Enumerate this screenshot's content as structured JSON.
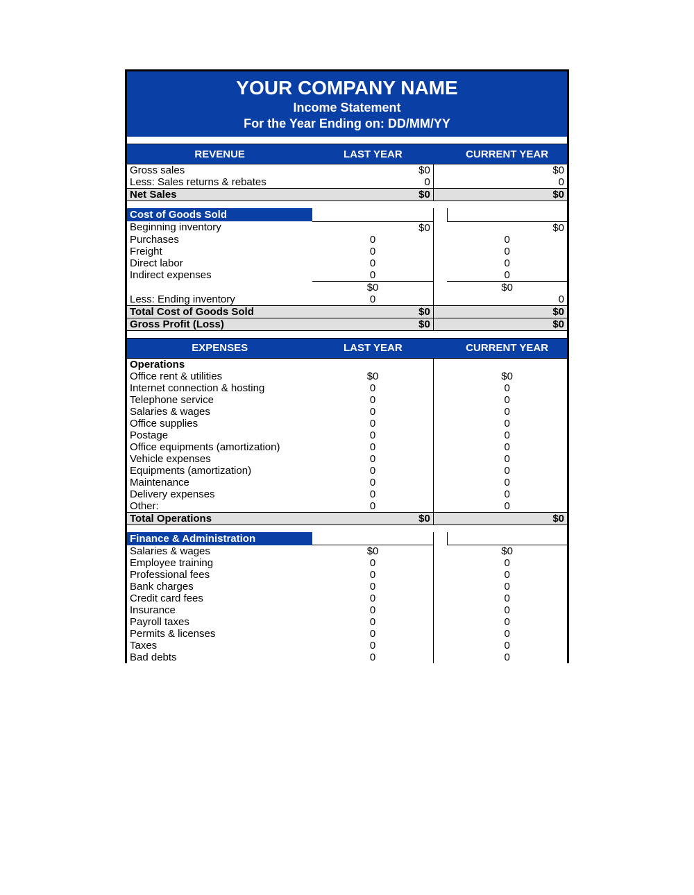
{
  "header": {
    "company": "YOUR COMPANY NAME",
    "subtitle": "Income Statement",
    "period": "For the Year Ending on: DD/MM/YY"
  },
  "colors": {
    "primary": "#0a3fa6",
    "shade": "#e0e0e0",
    "border": "#000000",
    "text_light": "#ffffff"
  },
  "revenue": {
    "heading": "REVENUE",
    "col_last": "LAST YEAR",
    "col_current": "CURRENT YEAR",
    "gross_sales": {
      "label": "Gross sales",
      "last": "$0",
      "current": "$0"
    },
    "returns": {
      "label": "Less: Sales returns & rebates",
      "last": "0",
      "current": "0"
    },
    "net_sales": {
      "label": "Net Sales",
      "last": "$0",
      "current": "$0"
    }
  },
  "cogs": {
    "heading": "Cost of Goods Sold",
    "rows": [
      {
        "label": "Beginning inventory",
        "last": "$0",
        "current": "$0",
        "align": "right"
      },
      {
        "label": "Purchases",
        "last": "0",
        "current": "0",
        "align": "center"
      },
      {
        "label": "Freight",
        "last": "0",
        "current": "0",
        "align": "center"
      },
      {
        "label": "Direct labor",
        "last": "0",
        "current": "0",
        "align": "center"
      },
      {
        "label": "Indirect expenses",
        "last": "0",
        "current": "0",
        "align": "center"
      }
    ],
    "subtotal": {
      "label": "",
      "last": "$0",
      "current": "$0"
    },
    "ending_inv": {
      "label": "Less: Ending inventory",
      "last": "0",
      "current": "0"
    },
    "total": {
      "label": "Total Cost of Goods Sold",
      "last": "$0",
      "current": "$0"
    },
    "gross_profit": {
      "label": "Gross Profit (Loss)",
      "last": "$0",
      "current": "$0"
    }
  },
  "expenses": {
    "heading": "EXPENSES",
    "col_last": "LAST YEAR",
    "col_current": "CURRENT YEAR",
    "operations": {
      "heading": "Operations",
      "rows": [
        {
          "label": "Office rent & utilities",
          "last": "$0",
          "current": "$0"
        },
        {
          "label": "Internet connection & hosting",
          "last": "0",
          "current": "0"
        },
        {
          "label": "Telephone service",
          "last": "0",
          "current": "0"
        },
        {
          "label": "Salaries & wages",
          "last": "0",
          "current": "0"
        },
        {
          "label": "Office supplies",
          "last": "0",
          "current": "0"
        },
        {
          "label": "Postage",
          "last": "0",
          "current": "0"
        },
        {
          "label": "Office equipments (amortization)",
          "last": "0",
          "current": "0"
        },
        {
          "label": "Vehicle expenses",
          "last": "0",
          "current": "0"
        },
        {
          "label": "Equipments (amortization)",
          "last": "0",
          "current": "0"
        },
        {
          "label": "Maintenance",
          "last": "0",
          "current": "0"
        },
        {
          "label": "Delivery expenses",
          "last": "0",
          "current": "0"
        },
        {
          "label": "Other:",
          "last": "0",
          "current": "0"
        }
      ],
      "total": {
        "label": "Total Operations",
        "last": "$0",
        "current": "$0"
      }
    },
    "finance": {
      "heading": "Finance & Administration",
      "rows": [
        {
          "label": "Salaries & wages",
          "last": "$0",
          "current": "$0"
        },
        {
          "label": "Employee training",
          "last": "0",
          "current": "0"
        },
        {
          "label": "Professional fees",
          "last": "0",
          "current": "0"
        },
        {
          "label": "Bank charges",
          "last": "0",
          "current": "0"
        },
        {
          "label": "Credit card fees",
          "last": "0",
          "current": "0"
        },
        {
          "label": "Insurance",
          "last": "0",
          "current": "0"
        },
        {
          "label": "Payroll taxes",
          "last": "0",
          "current": "0"
        },
        {
          "label": "Permits & licenses",
          "last": "0",
          "current": "0"
        },
        {
          "label": "Taxes",
          "last": "0",
          "current": "0"
        },
        {
          "label": "Bad debts",
          "last": "0",
          "current": "0"
        }
      ]
    }
  }
}
